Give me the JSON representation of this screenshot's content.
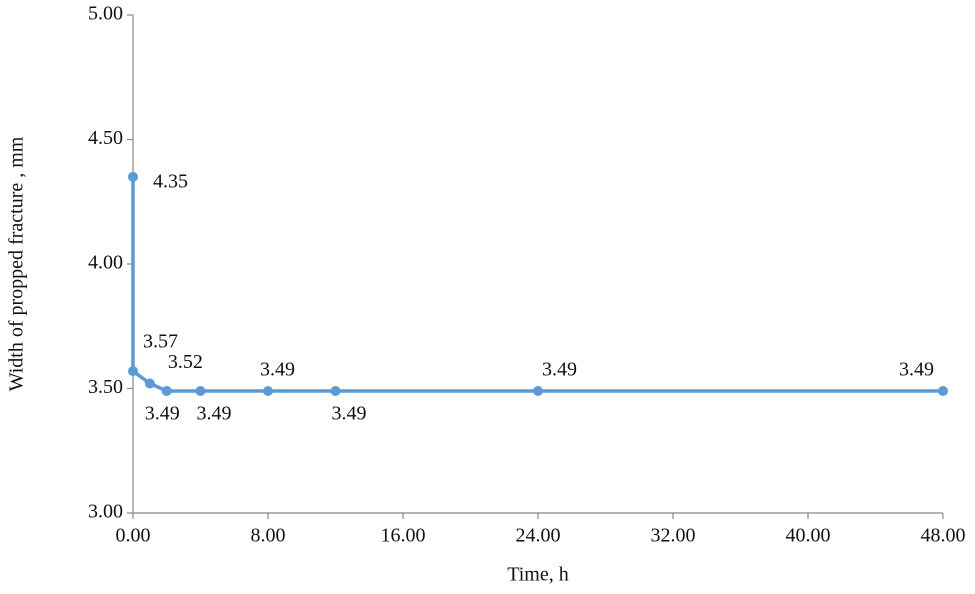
{
  "chart_data": {
    "type": "line",
    "x_label": "Time, h",
    "y_label": "Width of propped fracture , mm",
    "x": [
      0,
      0,
      1,
      2,
      4,
      8,
      12,
      24,
      48
    ],
    "values": [
      4.35,
      3.57,
      3.52,
      3.49,
      3.49,
      3.49,
      3.49,
      3.49,
      3.49
    ],
    "color": "#5b9bd5",
    "xlim": [
      0,
      48
    ],
    "xticks": [
      {
        "value": 0,
        "label": "0.00"
      },
      {
        "value": 8,
        "label": "8.00"
      },
      {
        "value": 16,
        "label": "16.00"
      },
      {
        "value": 24,
        "label": "24.00"
      },
      {
        "value": 32,
        "label": "32.00"
      },
      {
        "value": 40,
        "label": "40.00"
      },
      {
        "value": 48,
        "label": "48.00"
      }
    ],
    "ylim": [
      3,
      5
    ],
    "yticks": [
      {
        "value": 3,
        "label": "3.00"
      },
      {
        "value": 3.5,
        "label": "3.50"
      },
      {
        "value": 4,
        "label": "4.00"
      },
      {
        "value": 4.5,
        "label": "4.50"
      },
      {
        "value": 5,
        "label": "5.00"
      }
    ],
    "grid": false
  }
}
